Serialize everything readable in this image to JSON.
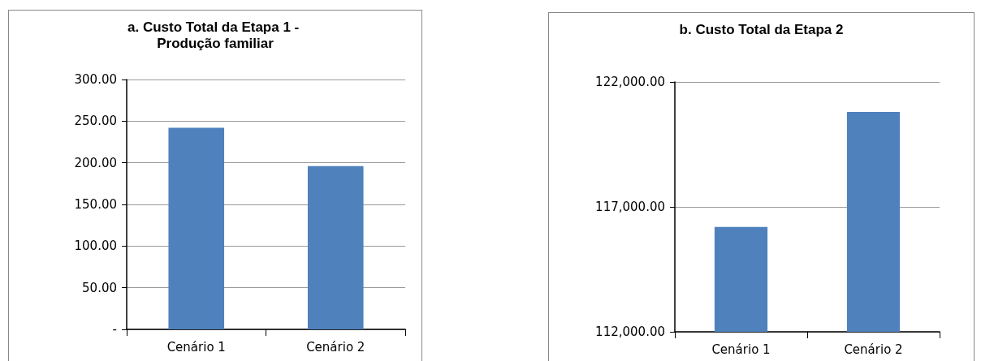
{
  "chart_data": [
    {
      "type": "bar",
      "title": "a. Custo Total da Etapa 1 - Produção familiar",
      "categories": [
        "Cenário 1",
        "Cenário 2"
      ],
      "values": [
        242,
        196
      ],
      "color": "#4f81bd",
      "ylim": [
        0,
        300
      ],
      "yticks": [
        {
          "value": 0,
          "label": "-"
        },
        {
          "value": 50,
          "label": "50.00"
        },
        {
          "value": 100,
          "label": "100.00"
        },
        {
          "value": 150,
          "label": "150.00"
        },
        {
          "value": 200,
          "label": "200.00"
        },
        {
          "value": 250,
          "label": "250.00"
        },
        {
          "value": 300,
          "label": "300.00"
        }
      ],
      "grid": "y"
    },
    {
      "type": "bar",
      "title": "b. Custo Total da Etapa 2",
      "categories": [
        "Cenário 1",
        "Cenário 2"
      ],
      "values": [
        116200,
        120800
      ],
      "color": "#4f81bd",
      "ylim": [
        112000,
        122000
      ],
      "yticks": [
        {
          "value": 112000,
          "label": "112,000.00"
        },
        {
          "value": 117000,
          "label": "117,000.00"
        },
        {
          "value": 122000,
          "label": "122,000.00"
        }
      ],
      "grid": "y"
    }
  ]
}
